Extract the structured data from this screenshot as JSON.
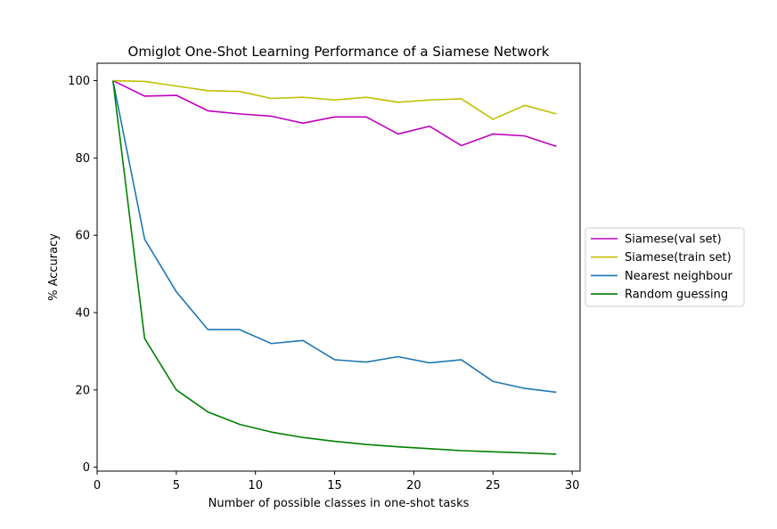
{
  "chart_data": {
    "type": "line",
    "title": "Omiglot One-Shot Learning Performance of a Siamese Network",
    "xlabel": "Number of possible classes in one-shot tasks",
    "ylabel": "% Accuracy",
    "xlim": [
      0,
      30.5
    ],
    "ylim": [
      -1,
      104.5
    ],
    "xticks": [
      0,
      5,
      10,
      15,
      20,
      25,
      30
    ],
    "yticks": [
      0,
      20,
      40,
      60,
      80,
      100
    ],
    "grid": false,
    "legend_position": "right",
    "x": [
      1,
      3,
      5,
      7,
      9,
      11,
      13,
      15,
      17,
      19,
      21,
      23,
      25,
      27,
      29
    ],
    "series": [
      {
        "name": "Siamese(val set)",
        "color": "#bf00bf",
        "values": [
          100,
          96,
          96.2,
          92.2,
          91.4,
          90.8,
          89,
          90.6,
          90.6,
          86.2,
          88.2,
          83.2,
          86.2,
          85.7,
          83
        ]
      },
      {
        "name": "Siamese(train set)",
        "color": "#bfbf00",
        "values": [
          100,
          99.8,
          98.6,
          97.4,
          97.2,
          95.4,
          95.7,
          95,
          95.7,
          94.4,
          95,
          95.3,
          90,
          93.6,
          91.4
        ]
      },
      {
        "name": "Nearest neighbour",
        "color": "#1f77b4",
        "values": [
          100,
          59,
          45.4,
          35.6,
          35.6,
          32,
          32.8,
          27.8,
          27.2,
          28.6,
          27,
          27.8,
          22.2,
          20.4,
          19.4
        ]
      },
      {
        "name": "Random guessing",
        "color": "#008000",
        "values": [
          100,
          33.3,
          20,
          14.3,
          11.1,
          9.1,
          7.7,
          6.7,
          5.9,
          5.3,
          4.8,
          4.3,
          4,
          3.7,
          3.4
        ]
      }
    ]
  }
}
